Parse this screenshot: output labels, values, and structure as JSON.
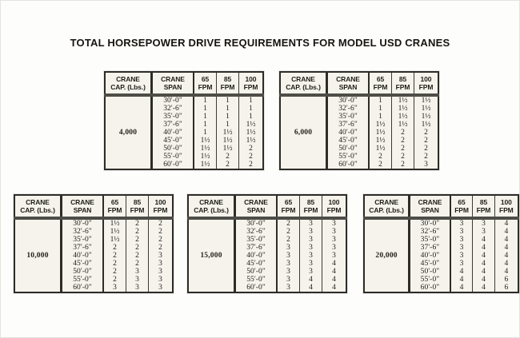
{
  "page": {
    "title": "TOTAL HORSEPOWER DRIVE REQUIREMENTS FOR MODEL USD CRANES"
  },
  "columns": [
    {
      "line1": "CRANE",
      "line2": "CAP. (Lbs.)"
    },
    {
      "line1": "CRANE",
      "line2": "SPAN"
    },
    {
      "line1": "65",
      "line2": "FPM"
    },
    {
      "line1": "85",
      "line2": "FPM"
    },
    {
      "line1": "100",
      "line2": "FPM"
    }
  ],
  "spans": [
    "30'-0\"",
    "32'-6\"",
    "35'-0\"",
    "37'-6\"",
    "40'-0\"",
    "45'-0\"",
    "50'-0\"",
    "55'-0\"",
    "60'-0\""
  ],
  "tables": [
    {
      "capacity": "4,000",
      "rows": [
        [
          "1",
          "1",
          "1"
        ],
        [
          "1",
          "1",
          "1"
        ],
        [
          "1",
          "1",
          "1"
        ],
        [
          "1",
          "1",
          "1½"
        ],
        [
          "1",
          "1½",
          "1½"
        ],
        [
          "1½",
          "1½",
          "1½"
        ],
        [
          "1½",
          "1½",
          "2"
        ],
        [
          "1½",
          "2",
          "2"
        ],
        [
          "1½",
          "2",
          "2"
        ]
      ]
    },
    {
      "capacity": "6,000",
      "rows": [
        [
          "1",
          "1½",
          "1½"
        ],
        [
          "1",
          "1½",
          "1½"
        ],
        [
          "1",
          "1½",
          "1½"
        ],
        [
          "1½",
          "1½",
          "1½"
        ],
        [
          "1½",
          "2",
          "2"
        ],
        [
          "1½",
          "2",
          "2"
        ],
        [
          "1½",
          "2",
          "2"
        ],
        [
          "2",
          "2",
          "2"
        ],
        [
          "2",
          "2",
          "3"
        ]
      ]
    },
    {
      "capacity": "10,000",
      "rows": [
        [
          "1½",
          "2",
          "2"
        ],
        [
          "1½",
          "2",
          "2"
        ],
        [
          "1½",
          "2",
          "2"
        ],
        [
          "2",
          "2",
          "2"
        ],
        [
          "2",
          "2",
          "3"
        ],
        [
          "2",
          "2",
          "3"
        ],
        [
          "2",
          "3",
          "3"
        ],
        [
          "2",
          "3",
          "3"
        ],
        [
          "3",
          "3",
          "3"
        ]
      ]
    },
    {
      "capacity": "15,000",
      "rows": [
        [
          "2",
          "3",
          "3"
        ],
        [
          "2",
          "3",
          "3"
        ],
        [
          "2",
          "3",
          "3"
        ],
        [
          "3",
          "3",
          "3"
        ],
        [
          "3",
          "3",
          "3"
        ],
        [
          "3",
          "3",
          "4"
        ],
        [
          "3",
          "3",
          "4"
        ],
        [
          "3",
          "4",
          "4"
        ],
        [
          "3",
          "4",
          "4"
        ]
      ]
    },
    {
      "capacity": "20,000",
      "rows": [
        [
          "3",
          "3",
          "4"
        ],
        [
          "3",
          "3",
          "4"
        ],
        [
          "3",
          "4",
          "4"
        ],
        [
          "3",
          "4",
          "4"
        ],
        [
          "3",
          "4",
          "4"
        ],
        [
          "3",
          "4",
          "4"
        ],
        [
          "4",
          "4",
          "4"
        ],
        [
          "4",
          "4",
          "6"
        ],
        [
          "4",
          "4",
          "6"
        ]
      ]
    }
  ],
  "colors": {
    "ink": "#23211b",
    "table_background": "#f5f3ec",
    "page_background": "#fdfdfb",
    "border": "#2e2c27"
  }
}
